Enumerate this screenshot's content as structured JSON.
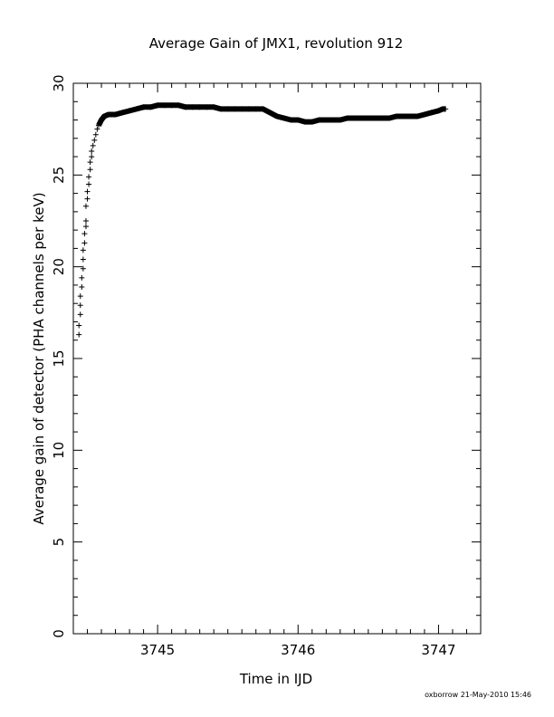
{
  "chart_data": {
    "type": "scatter",
    "title": "Average Gain of JMX1, revolution 912",
    "xlabel": "Time in IJD",
    "ylabel": "Average gain of detector (PHA channels per keV)",
    "xlim": [
      3744.4,
      3747.3
    ],
    "ylim": [
      0,
      30
    ],
    "x_ticks": [
      3745,
      3746,
      3747
    ],
    "y_ticks": [
      0,
      5,
      10,
      15,
      20,
      25,
      30
    ],
    "grid": false,
    "marker": "plus",
    "series": [
      {
        "points": [
          [
            3744.44,
            16.3
          ],
          [
            3744.44,
            16.8
          ],
          [
            3744.45,
            17.4
          ],
          [
            3744.45,
            17.9
          ],
          [
            3744.45,
            18.4
          ],
          [
            3744.46,
            18.9
          ],
          [
            3744.46,
            19.4
          ],
          [
            3744.47,
            19.9
          ],
          [
            3744.47,
            20.4
          ],
          [
            3744.47,
            20.9
          ],
          [
            3744.48,
            21.3
          ],
          [
            3744.48,
            21.8
          ],
          [
            3744.49,
            22.2
          ],
          [
            3744.49,
            22.5
          ],
          [
            3744.49,
            23.3
          ],
          [
            3744.5,
            23.7
          ],
          [
            3744.5,
            24.1
          ],
          [
            3744.51,
            24.5
          ],
          [
            3744.51,
            24.9
          ],
          [
            3744.52,
            25.3
          ],
          [
            3744.52,
            25.7
          ],
          [
            3744.53,
            26.0
          ],
          [
            3744.53,
            26.3
          ],
          [
            3744.54,
            26.6
          ],
          [
            3744.55,
            26.9
          ],
          [
            3744.56,
            27.2
          ],
          [
            3744.57,
            27.5
          ],
          [
            3744.58,
            27.7
          ],
          [
            3744.6,
            28.0
          ],
          [
            3744.62,
            28.2
          ],
          [
            3744.65,
            28.3
          ],
          [
            3744.7,
            28.3
          ],
          [
            3744.75,
            28.4
          ],
          [
            3744.8,
            28.5
          ],
          [
            3744.85,
            28.6
          ],
          [
            3744.9,
            28.7
          ],
          [
            3744.95,
            28.7
          ],
          [
            3745.0,
            28.8
          ],
          [
            3745.05,
            28.8
          ],
          [
            3745.1,
            28.8
          ],
          [
            3745.15,
            28.8
          ],
          [
            3745.2,
            28.7
          ],
          [
            3745.25,
            28.7
          ],
          [
            3745.3,
            28.7
          ],
          [
            3745.35,
            28.7
          ],
          [
            3745.4,
            28.7
          ],
          [
            3745.45,
            28.6
          ],
          [
            3745.5,
            28.6
          ],
          [
            3745.55,
            28.6
          ],
          [
            3745.6,
            28.6
          ],
          [
            3745.65,
            28.6
          ],
          [
            3745.7,
            28.6
          ],
          [
            3745.75,
            28.6
          ],
          [
            3745.8,
            28.4
          ],
          [
            3745.85,
            28.2
          ],
          [
            3745.9,
            28.1
          ],
          [
            3745.95,
            28.0
          ],
          [
            3746.0,
            28.0
          ],
          [
            3746.05,
            27.9
          ],
          [
            3746.1,
            27.9
          ],
          [
            3746.15,
            28.0
          ],
          [
            3746.2,
            28.0
          ],
          [
            3746.25,
            28.0
          ],
          [
            3746.3,
            28.0
          ],
          [
            3746.35,
            28.1
          ],
          [
            3746.4,
            28.1
          ],
          [
            3746.45,
            28.1
          ],
          [
            3746.5,
            28.1
          ],
          [
            3746.55,
            28.1
          ],
          [
            3746.6,
            28.1
          ],
          [
            3746.65,
            28.1
          ],
          [
            3746.7,
            28.2
          ],
          [
            3746.75,
            28.2
          ],
          [
            3746.8,
            28.2
          ],
          [
            3746.85,
            28.2
          ],
          [
            3746.9,
            28.3
          ],
          [
            3746.95,
            28.4
          ],
          [
            3747.0,
            28.5
          ],
          [
            3747.03,
            28.6
          ],
          [
            3747.05,
            28.6
          ]
        ]
      }
    ]
  },
  "footer": "oxborrow 21-May-2010 15:46"
}
